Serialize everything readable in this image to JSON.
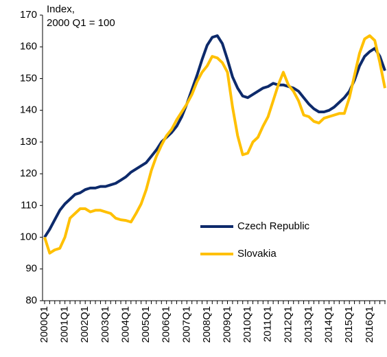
{
  "chart_data": {
    "type": "line",
    "y_label": [
      "Index,",
      "2000 Q1 = 100"
    ],
    "categories": [
      "2000Q1",
      null,
      null,
      null,
      "2001Q1",
      null,
      null,
      null,
      "2002Q1",
      null,
      null,
      null,
      "2003Q1",
      null,
      null,
      null,
      "2004Q1",
      null,
      null,
      null,
      "2005Q1",
      null,
      null,
      null,
      "2006Q1",
      null,
      null,
      null,
      "2007Q1",
      null,
      null,
      null,
      "2008Q1",
      null,
      null,
      null,
      "2009Q1",
      null,
      null,
      null,
      "2010Q1",
      null,
      null,
      null,
      "2011Q1",
      null,
      null,
      null,
      "2012Q1",
      null,
      null,
      null,
      "2013Q1",
      null,
      null,
      null,
      "2014Q1",
      null,
      null,
      null,
      "2015Q1",
      null,
      null,
      null,
      "2016Q1",
      null,
      null,
      null
    ],
    "series": [
      {
        "name": "Czech Republic",
        "color": "#0d2a6b",
        "values": [
          100,
          102.5,
          105.5,
          108.5,
          110.5,
          112,
          113.5,
          114,
          115,
          115.5,
          115.5,
          116,
          116,
          116.5,
          117,
          118,
          119,
          120.5,
          121.5,
          122.5,
          123.5,
          125.5,
          127.5,
          130,
          131.5,
          133,
          135,
          138,
          142,
          146.5,
          151,
          156,
          160.5,
          163,
          163.5,
          161,
          156,
          150.5,
          147,
          144.5,
          144,
          145,
          146,
          147,
          147.5,
          148.5,
          148,
          148,
          147.5,
          147,
          146,
          144,
          142,
          140.5,
          139.5,
          139.5,
          140,
          141,
          142.5,
          144,
          146,
          149.5,
          154,
          157,
          158.5,
          159.5,
          157,
          152.5
        ]
      },
      {
        "name": "Slovakia",
        "color": "#ffc000",
        "values": [
          100,
          95,
          96,
          96.5,
          100,
          106,
          107.5,
          109,
          109,
          108,
          108.5,
          108.5,
          108,
          107.5,
          106,
          105.5,
          105.3,
          104.8,
          107.5,
          110.5,
          115,
          121,
          125.5,
          129,
          132,
          134,
          137,
          139.5,
          142,
          145,
          149,
          152,
          154,
          157,
          156.5,
          155,
          152,
          141,
          132,
          126,
          126.5,
          130,
          131.5,
          135,
          138,
          143,
          148,
          152,
          148,
          146,
          143,
          138.5,
          138,
          136.5,
          136,
          137.5,
          138,
          138.5,
          139,
          139,
          144,
          151,
          158,
          162.5,
          163.5,
          162,
          155,
          147
        ]
      }
    ],
    "ylim": [
      80,
      170
    ],
    "yticks": [
      80,
      90,
      100,
      110,
      120,
      130,
      140,
      150,
      160,
      170
    ],
    "legend": "center-right"
  }
}
